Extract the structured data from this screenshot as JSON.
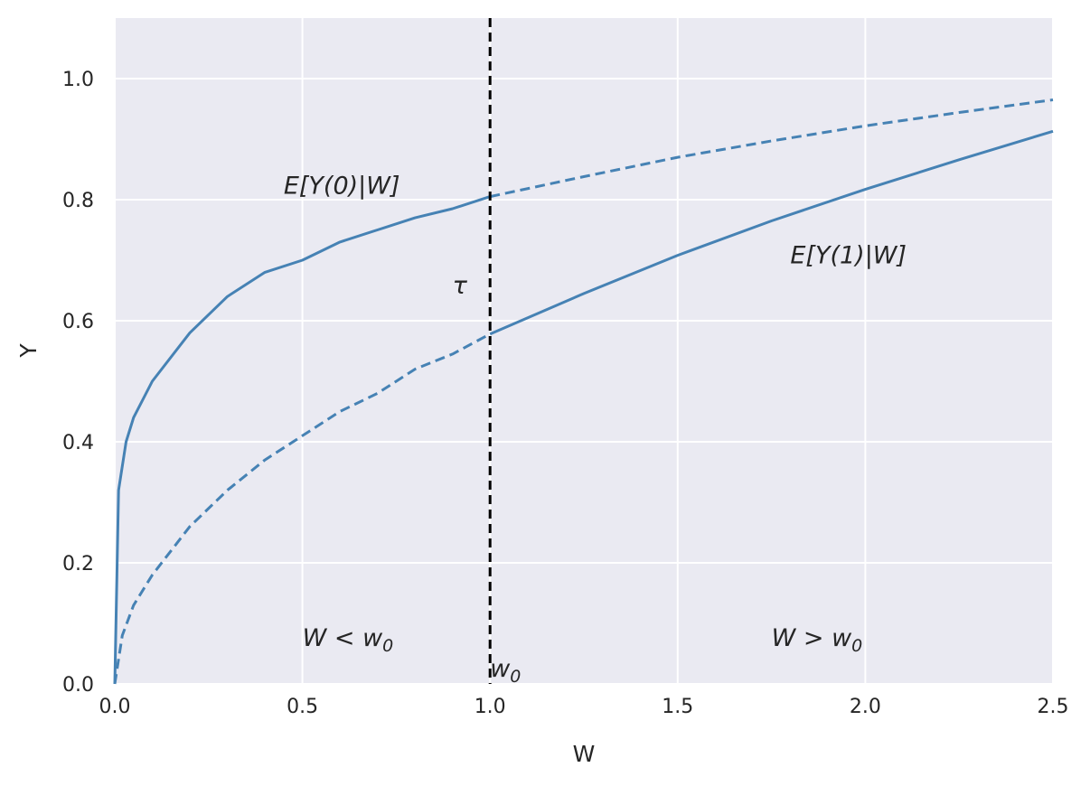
{
  "chart_data": {
    "type": "line",
    "title": "",
    "xlabel": "W",
    "ylabel": "Y",
    "xlim": [
      0.0,
      2.5
    ],
    "ylim": [
      0.0,
      1.1
    ],
    "grid": true,
    "x_ticks": [
      "0.0",
      "0.5",
      "1.0",
      "1.5",
      "2.0",
      "2.5"
    ],
    "y_ticks": [
      "0.0",
      "0.2",
      "0.4",
      "0.6",
      "0.8",
      "1.0"
    ],
    "colors": {
      "background": "#eaeaf2",
      "grid": "#ffffff",
      "series": "#4682b4",
      "cutoff": "#000000"
    },
    "threshold": 1.0,
    "series": [
      {
        "style": "solid then dashed",
        "points": [
          [
            0.0,
            0.0
          ],
          [
            0.01,
            0.32
          ],
          [
            0.03,
            0.4
          ],
          [
            0.05,
            0.44
          ],
          [
            0.1,
            0.5
          ],
          [
            0.2,
            0.58
          ],
          [
            0.3,
            0.64
          ],
          [
            0.4,
            0.68
          ],
          [
            0.5,
            0.7
          ],
          [
            0.6,
            0.73
          ],
          [
            0.7,
            0.75
          ],
          [
            0.8,
            0.77
          ],
          [
            0.9,
            0.785
          ],
          [
            1.0,
            0.805
          ],
          [
            1.25,
            0.838
          ],
          [
            1.5,
            0.87
          ],
          [
            1.75,
            0.897
          ],
          [
            2.0,
            0.922
          ],
          [
            2.25,
            0.944
          ],
          [
            2.5,
            0.965
          ]
        ]
      },
      {
        "style": "dashed then solid",
        "points": [
          [
            0.0,
            0.0
          ],
          [
            0.02,
            0.08
          ],
          [
            0.05,
            0.13
          ],
          [
            0.1,
            0.18
          ],
          [
            0.2,
            0.26
          ],
          [
            0.3,
            0.32
          ],
          [
            0.4,
            0.37
          ],
          [
            0.5,
            0.41
          ],
          [
            0.6,
            0.45
          ],
          [
            0.7,
            0.48
          ],
          [
            0.8,
            0.52
          ],
          [
            0.9,
            0.545
          ],
          [
            1.0,
            0.578
          ],
          [
            1.25,
            0.645
          ],
          [
            1.5,
            0.708
          ],
          [
            1.75,
            0.765
          ],
          [
            2.0,
            0.817
          ],
          [
            2.25,
            0.866
          ],
          [
            2.5,
            0.913
          ]
        ]
      }
    ],
    "annotations": [
      {
        "x": 0.45,
        "y": 0.81,
        "text": "E[Y(0)|W]"
      },
      {
        "x": 1.8,
        "y": 0.695,
        "text": "E[Y(1)|W]"
      },
      {
        "x": 0.9,
        "y": 0.645,
        "text": "τ"
      },
      {
        "x": 0.5,
        "y": 0.063,
        "text": "W < w",
        "sub": "0"
      },
      {
        "x": 1.75,
        "y": 0.063,
        "text": "W > w",
        "sub": "0"
      },
      {
        "x": 1.0,
        "y": 0.012,
        "text": "w",
        "sub": "0"
      }
    ]
  }
}
